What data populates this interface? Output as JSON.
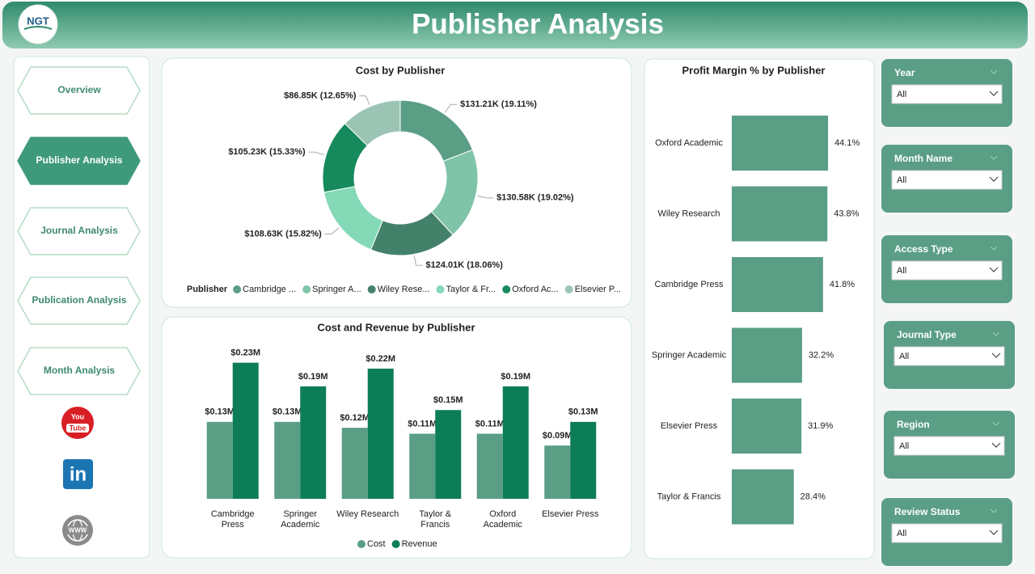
{
  "header": {
    "logo": "NGT",
    "title": "Publisher Analysis"
  },
  "nav": [
    "Overview",
    "Publisher Analysis",
    "Journal Analysis",
    "Publication Analysis",
    "Month Analysis"
  ],
  "nav_active": 1,
  "social": {
    "youtube": [
      "You",
      "Tube"
    ],
    "linkedin": "in",
    "web": "WWW"
  },
  "filters": [
    {
      "label": "Year",
      "value": "All"
    },
    {
      "label": "Month Name",
      "value": "All"
    },
    {
      "label": "Access Type",
      "value": "All"
    },
    {
      "label": "Journal Type",
      "value": "All"
    },
    {
      "label": "Region",
      "value": "All"
    },
    {
      "label": "Review Status",
      "value": "All"
    }
  ],
  "chart_data": [
    {
      "type": "donut",
      "title": "Cost by Publisher",
      "legend_title": "Publisher",
      "categories": [
        "Cambridge ...",
        "Springer A...",
        "Wiley Rese...",
        "Taylor & Fr...",
        "Oxford Ac...",
        "Elsevier P..."
      ],
      "values": [
        131210,
        130580,
        124010,
        108630,
        105230,
        86850
      ],
      "value_labels": [
        "$131.21K (19.11%)",
        "$130.58K (19.02%)",
        "$124.01K (18.06%)",
        "$108.63K (15.82%)",
        "$105.23K (15.33%)",
        "$86.85K (12.65%)"
      ],
      "colors": [
        "#5a9e85",
        "#7fc4a8",
        "#44816b",
        "#84d9b6",
        "#168a5d",
        "#9cc4b5"
      ]
    },
    {
      "type": "bar",
      "title": "Cost and Revenue by Publisher",
      "categories": [
        "Cambridge Press",
        "Springer Academic",
        "Wiley Research",
        "Taylor & Francis",
        "Oxford Academic",
        "Elsevier Press"
      ],
      "series": [
        {
          "name": "Cost",
          "color": "#5a9e85",
          "values": [
            0.13,
            0.13,
            0.12,
            0.11,
            0.11,
            0.09
          ],
          "value_labels": [
            "$0.13M",
            "$0.13M",
            "$0.12M",
            "$0.11M",
            "$0.11M",
            "$0.09M"
          ]
        },
        {
          "name": "Revenue",
          "color": "#0d7d58",
          "values": [
            0.23,
            0.19,
            0.22,
            0.15,
            0.19,
            0.13
          ],
          "value_labels": [
            "$0.23M",
            "$0.19M",
            "$0.22M",
            "$0.15M",
            "$0.19M",
            "$0.13M"
          ]
        }
      ],
      "ylim": [
        0,
        0.25
      ],
      "legend": "bottom"
    },
    {
      "type": "hbar",
      "title": "Profit Margin % by Publisher",
      "categories": [
        "Oxford Academic",
        "Wiley Research",
        "Cambridge Press",
        "Springer Academic",
        "Elsevier Press",
        "Taylor & Francis"
      ],
      "values": [
        44.1,
        43.8,
        41.8,
        32.2,
        31.9,
        28.4
      ],
      "value_labels": [
        "44.1%",
        "43.8%",
        "41.8%",
        "32.2%",
        "31.9%",
        "28.4%"
      ],
      "color": "#5a9e85",
      "xlim": [
        0,
        60
      ]
    }
  ]
}
